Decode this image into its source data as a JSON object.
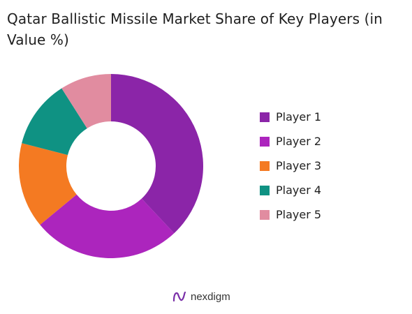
{
  "title": "Qatar Ballistic Missile Market Share of Key Players (in Value %)",
  "brand": {
    "name": "nexdigm",
    "logo_icon": "nexdigm-n-logo-icon",
    "logo_color": "#7a2fa8"
  },
  "chart_data": {
    "type": "pie",
    "donut": true,
    "title": "Qatar Ballistic Missile Market Share of Key Players (in Value %)",
    "legend_position": "right",
    "categories": [
      "Player 1",
      "Player 2",
      "Player 3",
      "Player 4",
      "Player 5"
    ],
    "values": [
      38,
      26,
      15,
      12,
      9
    ],
    "colors": [
      "#8b25a8",
      "#ac25bd",
      "#f47a22",
      "#0f9283",
      "#e18ca0"
    ]
  }
}
